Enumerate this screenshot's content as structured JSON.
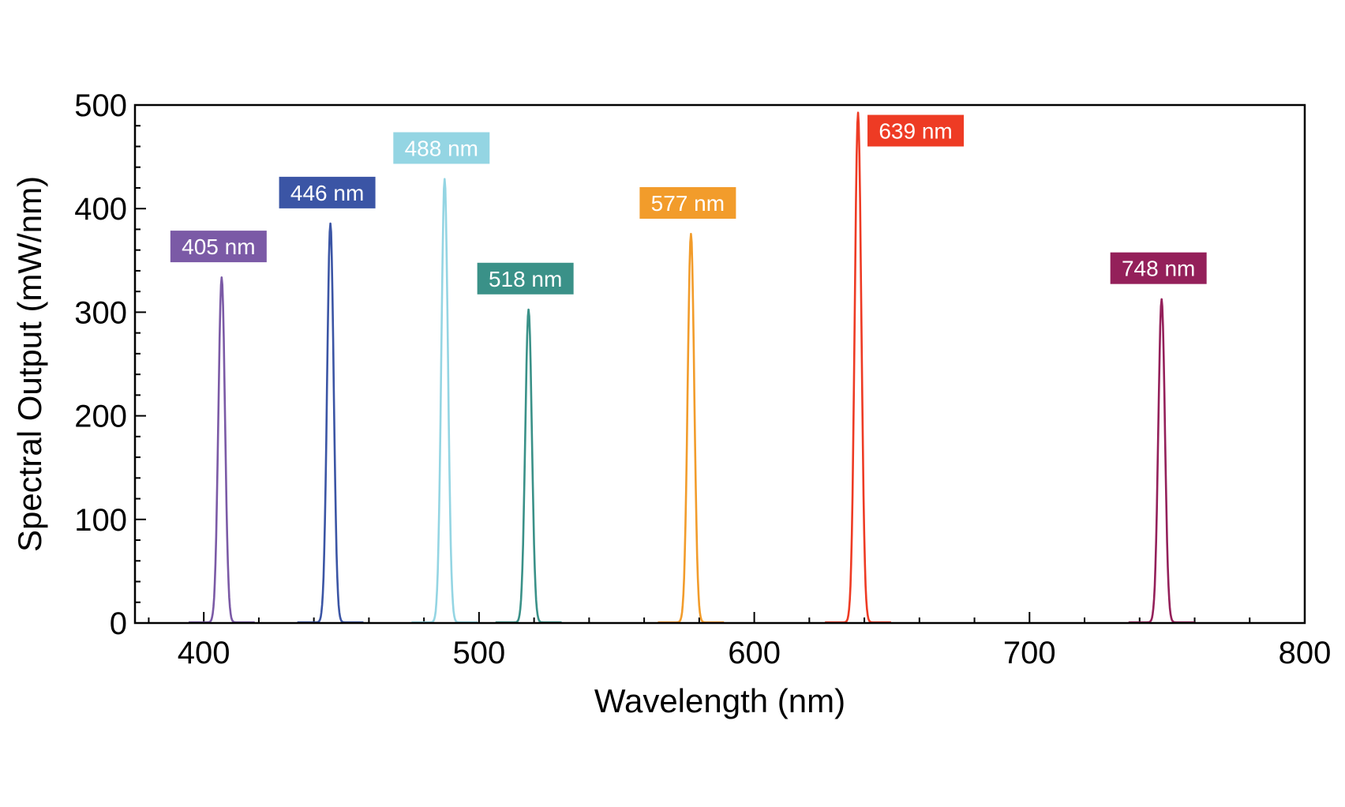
{
  "chart_data": {
    "type": "line",
    "title": "",
    "xlabel": "Wavelength (nm)",
    "ylabel": "Spectral Output (mW/nm)",
    "xlim": [
      375,
      800
    ],
    "ylim": [
      0,
      500
    ],
    "xticks": [
      400,
      500,
      600,
      700,
      800
    ],
    "yticks": [
      0,
      100,
      200,
      300,
      400,
      500
    ],
    "grid": false,
    "legend": "none",
    "series": [
      {
        "label": "405 nm",
        "peak_wavelength": 406.5,
        "peak_value": 333,
        "color": "#7b5aa6"
      },
      {
        "label": "446 nm",
        "peak_wavelength": 446,
        "peak_value": 385,
        "color": "#3b55a5"
      },
      {
        "label": "488 nm",
        "peak_wavelength": 487.5,
        "peak_value": 428,
        "color": "#94d5e3"
      },
      {
        "label": "518 nm",
        "peak_wavelength": 518,
        "peak_value": 302,
        "color": "#3a9188"
      },
      {
        "label": "577 nm",
        "peak_wavelength": 577,
        "peak_value": 375,
        "color": "#f29c2b"
      },
      {
        "label": "639 nm",
        "peak_wavelength": 637.7,
        "peak_value": 492,
        "color": "#ee3b24"
      },
      {
        "label": "748 nm",
        "peak_wavelength": 748,
        "peak_value": 312,
        "color": "#94205a"
      }
    ]
  }
}
